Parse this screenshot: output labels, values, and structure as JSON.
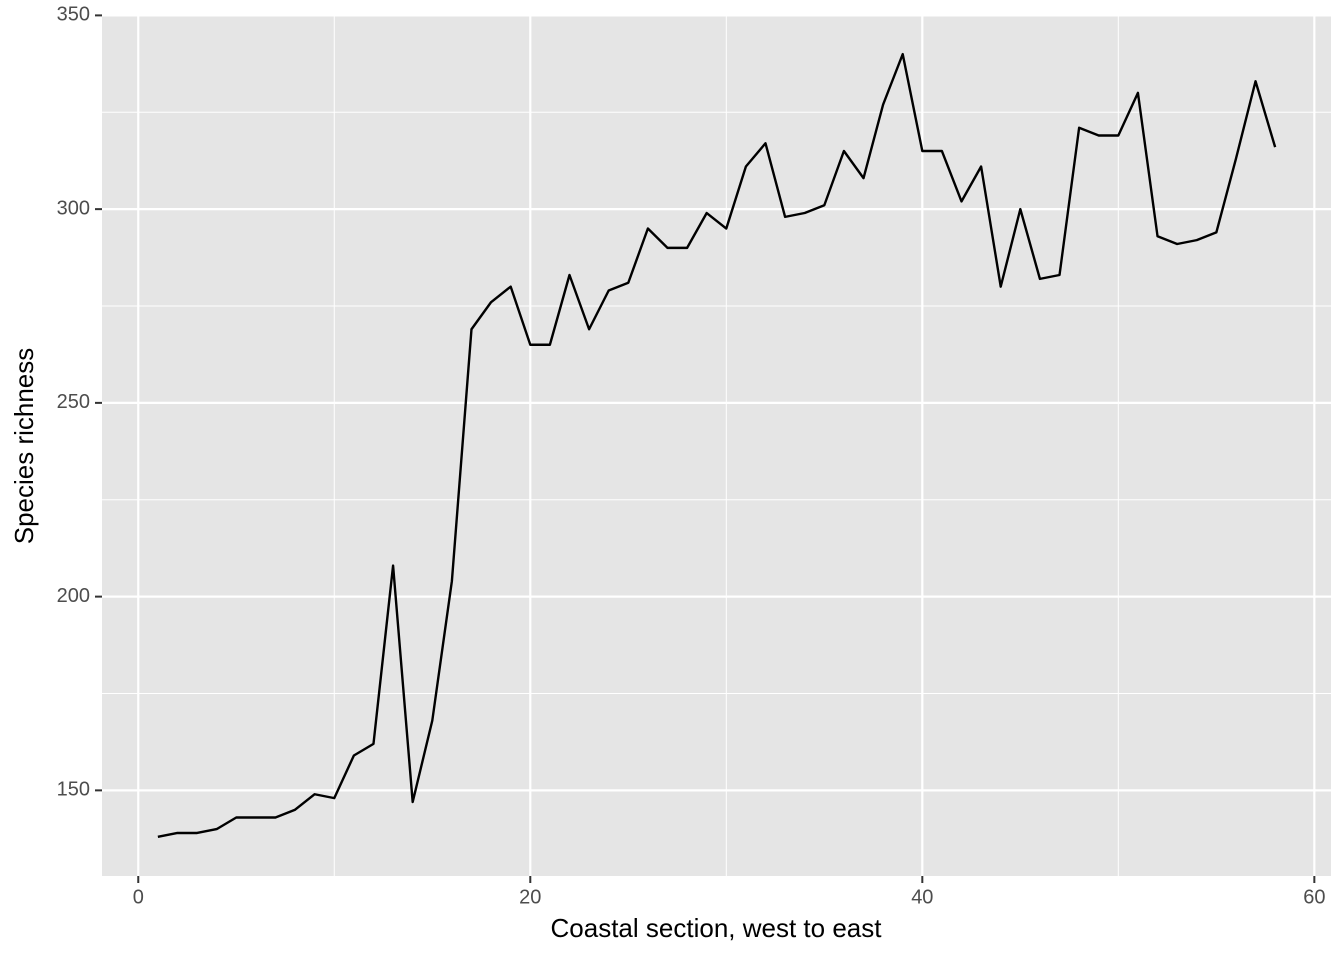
{
  "chart_data": {
    "type": "line",
    "x_label": "Coastal section, west to east",
    "y_label": "Species richness",
    "x": [
      1,
      2,
      3,
      4,
      5,
      6,
      7,
      8,
      9,
      10,
      11,
      12,
      13,
      14,
      15,
      16,
      17,
      18,
      19,
      20,
      21,
      22,
      23,
      24,
      25,
      26,
      27,
      28,
      29,
      30,
      31,
      32,
      33,
      34,
      35,
      36,
      37,
      38,
      39,
      40,
      41,
      42,
      43,
      44,
      45,
      46,
      47,
      48,
      49,
      50,
      51,
      52,
      53,
      54,
      55,
      56,
      57,
      58
    ],
    "series": [
      {
        "color": "#000000",
        "values": [
          138,
          139,
          139,
          140,
          143,
          143,
          143,
          145,
          149,
          148,
          159,
          162,
          208,
          147,
          168,
          204,
          269,
          276,
          280,
          265,
          265,
          283,
          269,
          279,
          281,
          295,
          290,
          290,
          299,
          295,
          311,
          317,
          298,
          299,
          301,
          315,
          308,
          327,
          340,
          315,
          315,
          302,
          311,
          280,
          300,
          282,
          283,
          321,
          319,
          319,
          330,
          293,
          291,
          292,
          294,
          313,
          333,
          316
        ]
      }
    ],
    "xlim": [
      -1.85,
      60.85
    ],
    "ylim": [
      127.9,
      350.1
    ],
    "xticks": [
      0,
      20,
      40,
      60
    ],
    "yticks": [
      150,
      200,
      250,
      300,
      350
    ],
    "grid": true
  }
}
